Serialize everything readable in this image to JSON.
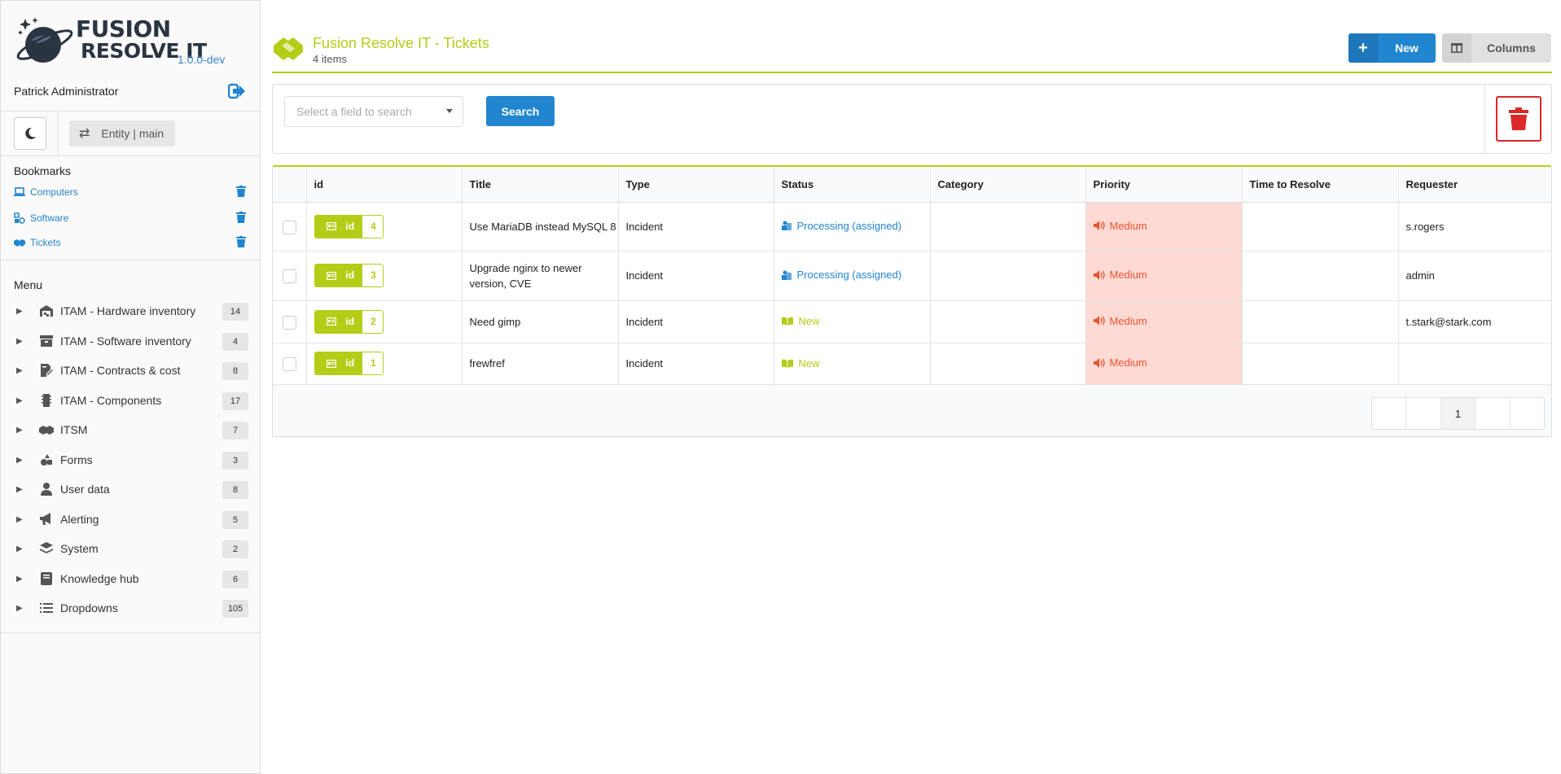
{
  "app": {
    "name_line1": "FUSION",
    "name_line2": "RESOLVE IT",
    "version": "1.0.0-dev"
  },
  "user": {
    "name": "Patrick Administrator"
  },
  "entity_switch": {
    "label": "Entity | main"
  },
  "bookmarks": {
    "title": "Bookmarks",
    "items": [
      {
        "label": "Computers",
        "icon": "laptop-icon"
      },
      {
        "label": "Software",
        "icon": "software-icon"
      },
      {
        "label": "Tickets",
        "icon": "handshake-icon"
      }
    ]
  },
  "menu": {
    "title": "Menu",
    "items": [
      {
        "label": "ITAM - Hardware inventory",
        "count": "14",
        "icon": "warehouse-icon"
      },
      {
        "label": "ITAM - Software inventory",
        "count": "4",
        "icon": "archive-icon"
      },
      {
        "label": "ITAM - Contracts & cost",
        "count": "8",
        "icon": "contract-icon"
      },
      {
        "label": "ITAM - Components",
        "count": "17",
        "icon": "memory-icon"
      },
      {
        "label": "ITSM",
        "count": "7",
        "icon": "handshake-icon"
      },
      {
        "label": "Forms",
        "count": "3",
        "icon": "shapes-icon"
      },
      {
        "label": "User data",
        "count": "8",
        "icon": "user-icon"
      },
      {
        "label": "Alerting",
        "count": "5",
        "icon": "bullhorn-icon"
      },
      {
        "label": "System",
        "count": "2",
        "icon": "layers-icon"
      },
      {
        "label": "Knowledge hub",
        "count": "6",
        "icon": "book-icon"
      },
      {
        "label": "Dropdowns",
        "count": "105",
        "icon": "list-icon"
      }
    ]
  },
  "page": {
    "title": "Fusion Resolve IT - Tickets",
    "subtitle": "4 items",
    "new_label": "New",
    "columns_label": "Columns"
  },
  "search": {
    "placeholder": "Select a field to search",
    "button_label": "Search"
  },
  "table": {
    "columns": [
      "id",
      "Title",
      "Type",
      "Status",
      "Category",
      "Priority",
      "Time to Resolve",
      "Requester"
    ],
    "rows": [
      {
        "id_label": "id",
        "id": "4",
        "title": "Use MariaDB instead MySQL 8",
        "type": "Incident",
        "status": "Processing (assigned)",
        "status_kind": "processing",
        "category": "",
        "priority": "Medium",
        "time_to_resolve": "",
        "requester": "s.rogers"
      },
      {
        "id_label": "id",
        "id": "3",
        "title": "Upgrade nginx to newer version, CVE",
        "type": "Incident",
        "status": "Processing (assigned)",
        "status_kind": "processing",
        "category": "",
        "priority": "Medium",
        "time_to_resolve": "",
        "requester": "admin"
      },
      {
        "id_label": "id",
        "id": "2",
        "title": "Need gimp",
        "type": "Incident",
        "status": "New",
        "status_kind": "new",
        "category": "",
        "priority": "Medium",
        "time_to_resolve": "",
        "requester": "t.stark@stark.com"
      },
      {
        "id_label": "id",
        "id": "1",
        "title": "frewfref",
        "type": "Incident",
        "status": "New",
        "status_kind": "new",
        "category": "",
        "priority": "Medium",
        "time_to_resolve": "",
        "requester": ""
      }
    ]
  },
  "pagination": {
    "current": "1"
  },
  "colors": {
    "accent": "#b5cc18",
    "primary": "#2185d0",
    "danger": "#db2828",
    "priority_bg": "#ffd9d4",
    "priority_text": "#e8552f"
  }
}
